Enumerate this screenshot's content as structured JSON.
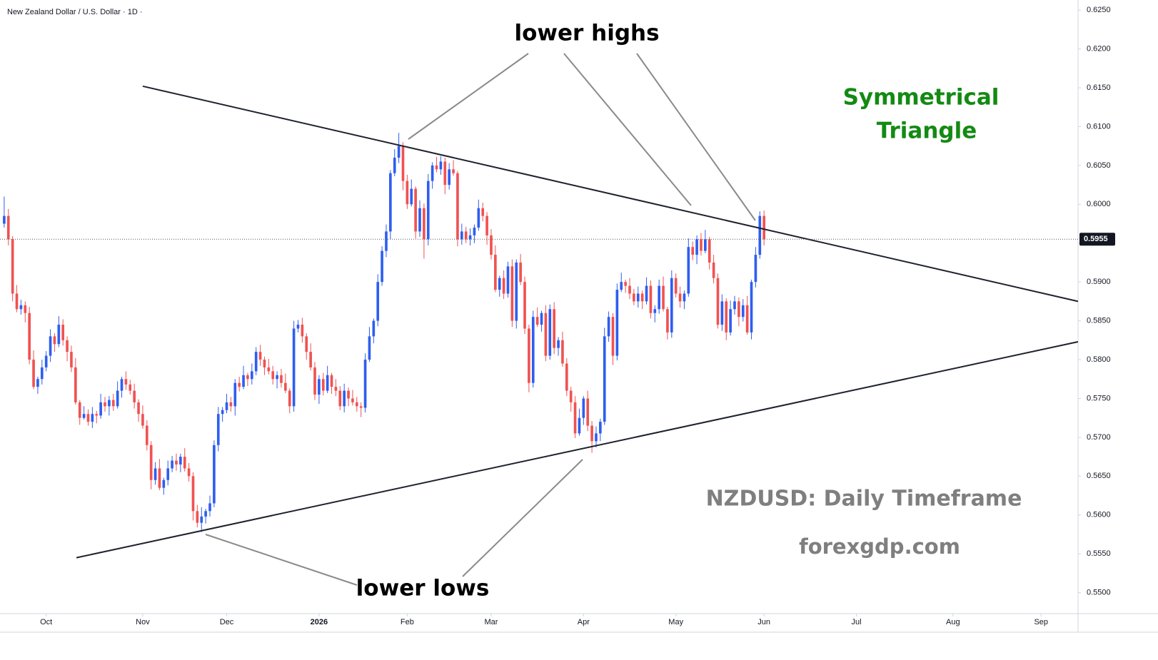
{
  "chart_data": {
    "type": "candlestick",
    "title": "New Zealand Dollar / U.S. Dollar · 1D ·",
    "up_color": "#2e5ef0",
    "down_color": "#f05252",
    "open": [
      0.5975,
      0.5985,
      0.5955,
      0.5885,
      0.5865,
      0.587,
      0.586,
      0.58,
      0.5765,
      0.5775,
      0.579,
      0.5805,
      0.583,
      0.582,
      0.5845,
      0.5825,
      0.581,
      0.579,
      0.5745,
      0.5725,
      0.573,
      0.572,
      0.573,
      0.5728,
      0.5745,
      0.574,
      0.5748,
      0.574,
      0.576,
      0.5775,
      0.5768,
      0.576,
      0.5745,
      0.573,
      0.5715,
      0.569,
      0.5645,
      0.566,
      0.5635,
      0.5645,
      0.566,
      0.567,
      0.5665,
      0.5675,
      0.566,
      0.565,
      0.5605,
      0.559,
      0.5598,
      0.5605,
      0.5615,
      0.569,
      0.573,
      0.5735,
      0.5745,
      0.574,
      0.577,
      0.5765,
      0.578,
      0.5775,
      0.5785,
      0.581,
      0.58,
      0.579,
      0.5785,
      0.5775,
      0.578,
      0.577,
      0.576,
      0.574,
      0.584,
      0.5845,
      0.583,
      0.581,
      0.579,
      0.5755,
      0.5775,
      0.576,
      0.578,
      0.5765,
      0.576,
      0.574,
      0.576,
      0.575,
      0.5745,
      0.574,
      0.5738,
      0.58,
      0.583,
      0.585,
      0.59,
      0.594,
      0.5965,
      0.604,
      0.606,
      0.6075,
      0.603,
      0.6,
      0.602,
      0.5965,
      0.5995,
      0.5955,
      0.603,
      0.605,
      0.6045,
      0.6055,
      0.6025,
      0.6045,
      0.604,
      0.5955,
      0.5965,
      0.5955,
      0.596,
      0.597,
      0.5995,
      0.5985,
      0.596,
      0.5935,
      0.589,
      0.5905,
      0.5885,
      0.592,
      0.585,
      0.5925,
      0.59,
      0.584,
      0.577,
      0.5855,
      0.5845,
      0.586,
      0.5805,
      0.5865,
      0.5815,
      0.5825,
      0.5795,
      0.576,
      0.5745,
      0.5705,
      0.5725,
      0.575,
      0.5715,
      0.5695,
      0.5705,
      0.572,
      0.583,
      0.5855,
      0.5805,
      0.589,
      0.59,
      0.5895,
      0.5885,
      0.5875,
      0.5885,
      0.5875,
      0.5895,
      0.586,
      0.5865,
      0.5895,
      0.5865,
      0.5835,
      0.5905,
      0.5885,
      0.5875,
      0.5885,
      0.5945,
      0.5935,
      0.5955,
      0.594,
      0.5955,
      0.5925,
      0.5905,
      0.5845,
      0.5875,
      0.5835,
      0.5865,
      0.5875,
      0.5855,
      0.587,
      0.5835,
      0.59,
      0.5935,
      0.5985
    ],
    "high": [
      0.601,
      0.5994,
      0.5959,
      0.5896,
      0.5877,
      0.5875,
      0.5868,
      0.5812,
      0.5778,
      0.58,
      0.5811,
      0.5839,
      0.5834,
      0.5856,
      0.5852,
      0.583,
      0.5818,
      0.5802,
      0.5748,
      0.574,
      0.5736,
      0.5739,
      0.5734,
      0.5756,
      0.5752,
      0.5753,
      0.5756,
      0.5772,
      0.5778,
      0.5785,
      0.5774,
      0.5769,
      0.5749,
      0.5741,
      0.5722,
      0.5695,
      0.5668,
      0.5672,
      0.5648,
      0.567,
      0.5676,
      0.5679,
      0.5679,
      0.5686,
      0.5667,
      0.5655,
      0.5613,
      0.561,
      0.5608,
      0.5625,
      0.5696,
      0.5739,
      0.5739,
      0.5756,
      0.5752,
      0.5775,
      0.5778,
      0.5792,
      0.5783,
      0.5795,
      0.5816,
      0.5819,
      0.5804,
      0.5801,
      0.5792,
      0.5785,
      0.5788,
      0.5782,
      0.5763,
      0.585,
      0.5851,
      0.5854,
      0.5834,
      0.5821,
      0.5797,
      0.578,
      0.5783,
      0.5792,
      0.5783,
      0.5775,
      0.5766,
      0.5769,
      0.5764,
      0.5761,
      0.5752,
      0.5745,
      0.5808,
      0.5842,
      0.5853,
      0.591,
      0.5946,
      0.5974,
      0.6044,
      0.6071,
      0.6092,
      0.608,
      0.6038,
      0.6032,
      0.6023,
      0.6005,
      0.6001,
      0.6039,
      0.6054,
      0.6061,
      0.6062,
      0.606,
      0.6053,
      0.6057,
      0.6043,
      0.5975,
      0.5971,
      0.5969,
      0.5974,
      0.6006,
      0.6002,
      0.599,
      0.5968,
      0.5947,
      0.5908,
      0.5915,
      0.5926,
      0.5929,
      0.5929,
      0.5936,
      0.5907,
      0.5845,
      0.5863,
      0.5867,
      0.5863,
      0.587,
      0.5871,
      0.5874,
      0.5829,
      0.5836,
      0.5802,
      0.5765,
      0.5753,
      0.5737,
      0.5753,
      0.576,
      0.5721,
      0.5714,
      0.5724,
      0.5841,
      0.5862,
      0.586,
      0.5898,
      0.5912,
      0.5903,
      0.5905,
      0.5891,
      0.5894,
      0.5889,
      0.5906,
      0.5902,
      0.587,
      0.5903,
      0.5907,
      0.5868,
      0.5915,
      0.5911,
      0.5894,
      0.5889,
      0.5956,
      0.5952,
      0.596,
      0.5963,
      0.5967,
      0.5958,
      0.5935,
      0.5911,
      0.5884,
      0.5879,
      0.5876,
      0.5882,
      0.588,
      0.5878,
      0.5882,
      0.5903,
      0.5945,
      0.5991,
      0.5992
    ],
    "low": [
      0.597,
      0.5947,
      0.5875,
      0.5861,
      0.5858,
      0.5848,
      0.5794,
      0.5762,
      0.5756,
      0.5768,
      0.5785,
      0.5797,
      0.581,
      0.5816,
      0.5818,
      0.5798,
      0.5784,
      0.5742,
      0.5716,
      0.5723,
      0.5715,
      0.5712,
      0.5718,
      0.5724,
      0.5733,
      0.5728,
      0.5734,
      0.5737,
      0.5751,
      0.5761,
      0.5755,
      0.5737,
      0.572,
      0.5711,
      0.5683,
      0.5633,
      0.5639,
      0.5632,
      0.5626,
      0.5638,
      0.5655,
      0.5657,
      0.5655,
      0.5656,
      0.5643,
      0.5593,
      0.5584,
      0.5578,
      0.5589,
      0.5598,
      0.561,
      0.5682,
      0.572,
      0.5731,
      0.5733,
      0.5728,
      0.5759,
      0.5762,
      0.5766,
      0.5768,
      0.578,
      0.5792,
      0.578,
      0.5781,
      0.5768,
      0.5763,
      0.5764,
      0.5757,
      0.5731,
      0.5733,
      0.5835,
      0.5822,
      0.58,
      0.5786,
      0.5748,
      0.5743,
      0.5754,
      0.5757,
      0.5756,
      0.5753,
      0.5735,
      0.5732,
      0.574,
      0.5741,
      0.5733,
      0.5726,
      0.5732,
      0.5797,
      0.5821,
      0.5843,
      0.5895,
      0.5932,
      0.5955,
      0.6036,
      0.6053,
      0.6018,
      0.5994,
      0.5997,
      0.5956,
      0.5958,
      0.593,
      0.5947,
      0.602,
      0.6041,
      0.6038,
      0.6013,
      0.6019,
      0.6037,
      0.5946,
      0.5948,
      0.595,
      0.5947,
      0.595,
      0.5966,
      0.5978,
      0.5948,
      0.5929,
      0.5887,
      0.5881,
      0.5878,
      0.588,
      0.5842,
      0.584,
      0.5896,
      0.5833,
      0.5758,
      0.5764,
      0.5842,
      0.5836,
      0.5798,
      0.58,
      0.5807,
      0.5805,
      0.5791,
      0.5753,
      0.5733,
      0.5699,
      0.5702,
      0.5716,
      0.5708,
      0.568,
      0.5687,
      0.5695,
      0.5716,
      0.5823,
      0.5793,
      0.5799,
      0.5887,
      0.5886,
      0.5878,
      0.587,
      0.5867,
      0.5865,
      0.5871,
      0.5853,
      0.5848,
      0.5859,
      0.5862,
      0.5826,
      0.5828,
      0.588,
      0.5867,
      0.5865,
      0.5881,
      0.5928,
      0.5923,
      0.5934,
      0.5937,
      0.5916,
      0.5898,
      0.584,
      0.5837,
      0.5825,
      0.5831,
      0.5858,
      0.5843,
      0.5849,
      0.5832,
      0.5826,
      0.5893,
      0.593,
      0.5947
    ],
    "close": [
      0.5985,
      0.5955,
      0.5885,
      0.5865,
      0.587,
      0.586,
      0.58,
      0.5765,
      0.5775,
      0.579,
      0.5805,
      0.583,
      0.582,
      0.5845,
      0.5825,
      0.581,
      0.579,
      0.5745,
      0.5725,
      0.573,
      0.572,
      0.573,
      0.5728,
      0.5745,
      0.574,
      0.5748,
      0.574,
      0.576,
      0.5775,
      0.5768,
      0.576,
      0.5745,
      0.573,
      0.5715,
      0.569,
      0.5645,
      0.566,
      0.5635,
      0.5645,
      0.566,
      0.567,
      0.5665,
      0.5675,
      0.566,
      0.565,
      0.5605,
      0.559,
      0.5598,
      0.5605,
      0.5615,
      0.569,
      0.573,
      0.5735,
      0.5745,
      0.574,
      0.577,
      0.5765,
      0.578,
      0.5775,
      0.5785,
      0.581,
      0.58,
      0.579,
      0.5785,
      0.5775,
      0.578,
      0.577,
      0.576,
      0.574,
      0.584,
      0.5845,
      0.583,
      0.581,
      0.579,
      0.5755,
      0.5775,
      0.576,
      0.578,
      0.5765,
      0.576,
      0.574,
      0.576,
      0.575,
      0.5745,
      0.574,
      0.5738,
      0.58,
      0.583,
      0.585,
      0.59,
      0.594,
      0.5965,
      0.604,
      0.606,
      0.6075,
      0.603,
      0.6,
      0.602,
      0.5965,
      0.5995,
      0.5955,
      0.603,
      0.605,
      0.6045,
      0.6055,
      0.6025,
      0.6045,
      0.604,
      0.5955,
      0.5965,
      0.5955,
      0.596,
      0.597,
      0.5995,
      0.5985,
      0.596,
      0.5935,
      0.589,
      0.5905,
      0.5885,
      0.592,
      0.585,
      0.5925,
      0.59,
      0.584,
      0.577,
      0.5855,
      0.5845,
      0.586,
      0.5805,
      0.5865,
      0.5815,
      0.5825,
      0.5795,
      0.576,
      0.5745,
      0.5705,
      0.5725,
      0.575,
      0.5715,
      0.5695,
      0.5705,
      0.572,
      0.583,
      0.5855,
      0.5805,
      0.589,
      0.59,
      0.5895,
      0.5885,
      0.5875,
      0.5885,
      0.5875,
      0.5895,
      0.586,
      0.5865,
      0.5895,
      0.5865,
      0.5835,
      0.5905,
      0.5885,
      0.5875,
      0.5885,
      0.5945,
      0.5935,
      0.5955,
      0.594,
      0.5955,
      0.5925,
      0.5905,
      0.5845,
      0.5875,
      0.5835,
      0.5865,
      0.5875,
      0.5855,
      0.587,
      0.5835,
      0.59,
      0.5935,
      0.5985,
      0.5955
    ],
    "xlim": [
      -1,
      255.8
    ],
    "xticks": [
      {
        "value": 10,
        "label": "Oct"
      },
      {
        "value": 33,
        "label": "Nov"
      },
      {
        "value": 53,
        "label": "Dec"
      },
      {
        "value": 75,
        "label": "2026"
      },
      {
        "value": 96,
        "label": "Feb"
      },
      {
        "value": 116,
        "label": "Mar"
      },
      {
        "value": 138,
        "label": "Apr"
      },
      {
        "value": 160,
        "label": "May"
      },
      {
        "value": 181,
        "label": "Jun"
      },
      {
        "value": 203,
        "label": "Jul"
      },
      {
        "value": 226,
        "label": "Aug"
      },
      {
        "value": 247,
        "label": "Sep"
      }
    ],
    "ylim": [
      0.5473,
      0.6263
    ],
    "yticks": [
      {
        "value": 0.55,
        "label": "0.5500"
      },
      {
        "value": 0.555,
        "label": "0.5550"
      },
      {
        "value": 0.56,
        "label": "0.5600"
      },
      {
        "value": 0.565,
        "label": "0.5650"
      },
      {
        "value": 0.57,
        "label": "0.5700"
      },
      {
        "value": 0.575,
        "label": "0.5750"
      },
      {
        "value": 0.58,
        "label": "0.5800"
      },
      {
        "value": 0.585,
        "label": "0.5850"
      },
      {
        "value": 0.59,
        "label": "0.5900"
      },
      {
        "value": 0.595,
        "label": "0.5950"
      },
      {
        "value": 0.6,
        "label": "0.6000"
      },
      {
        "value": 0.605,
        "label": "0.6050"
      },
      {
        "value": 0.61,
        "label": "0.6100"
      },
      {
        "value": 0.615,
        "label": "0.6150"
      },
      {
        "value": 0.62,
        "label": "0.6200"
      },
      {
        "value": 0.625,
        "label": "0.6250"
      }
    ],
    "price_line": {
      "value": 0.5955,
      "label": "0.5955"
    },
    "trendlines": [
      {
        "x": [
          33,
          255.8
        ],
        "y": [
          0.6152,
          0.5875
        ]
      },
      {
        "x": [
          17.2,
          255.8
        ],
        "y": [
          0.5545,
          0.5823
        ]
      }
    ],
    "annotations": [
      "lower highs",
      "lower lows",
      "Symmetrical",
      "Triangle",
      "NZDUSD: Daily Timeframe",
      "forexgdp.com"
    ]
  }
}
